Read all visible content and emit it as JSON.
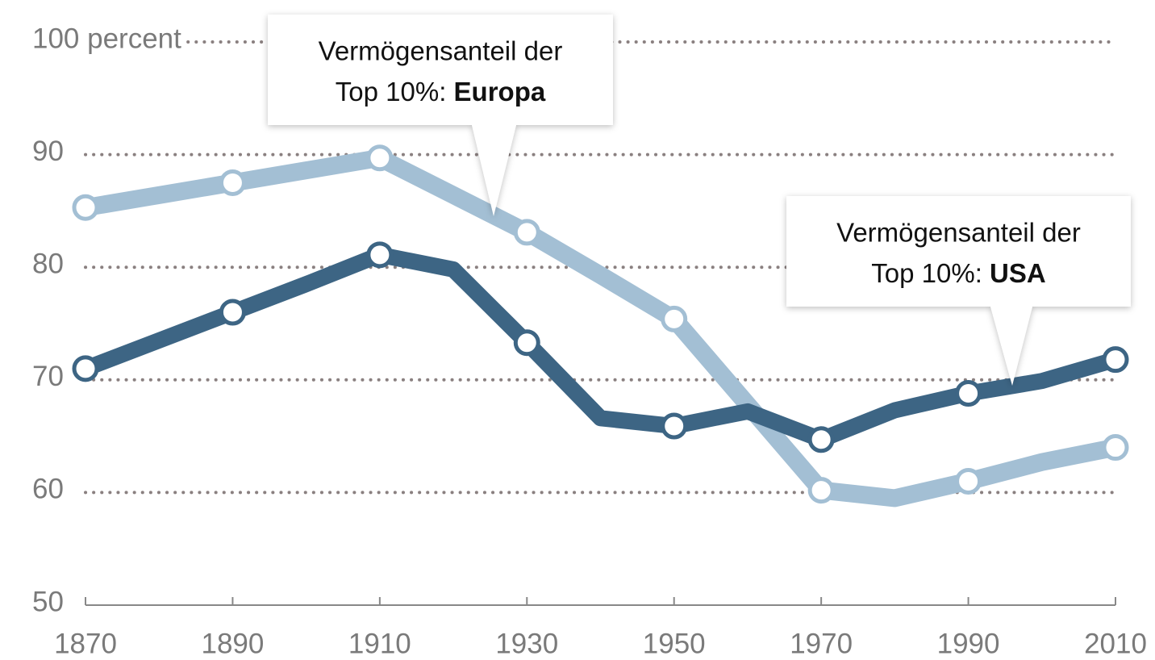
{
  "chart_data": {
    "type": "line",
    "x": [
      1870,
      1880,
      1890,
      1900,
      1910,
      1920,
      1930,
      1940,
      1950,
      1960,
      1970,
      1980,
      1990,
      2000,
      2010
    ],
    "series": [
      {
        "name": "Europa",
        "color": "#a3bfd4",
        "values": [
          85.3,
          86.4,
          87.5,
          88.6,
          89.7,
          86.4,
          83.1,
          79.3,
          75.4,
          67.8,
          60.2,
          59.5,
          61.0,
          62.7,
          64.0
        ]
      },
      {
        "name": "USA",
        "color": "#3d6584",
        "values": [
          71.0,
          73.5,
          76.0,
          78.5,
          81.1,
          79.8,
          73.3,
          66.6,
          65.9,
          67.2,
          64.7,
          67.3,
          68.8,
          69.9,
          71.8
        ]
      }
    ],
    "xlim": [
      1870,
      2010
    ],
    "xticks": [
      1870,
      1890,
      1910,
      1930,
      1950,
      1970,
      1990,
      2010
    ],
    "ylim": [
      50,
      100
    ],
    "yticks": [
      50,
      60,
      70,
      80,
      90,
      {
        "value": 100,
        "label": "100 percent"
      }
    ],
    "grid": true,
    "annotations": [
      {
        "text": "Vermögensanteil der",
        "prefix": "Top 10%:",
        "series": 0
      },
      {
        "text": "Vermögensanteil der",
        "prefix": "Top 10%:",
        "series": 1
      }
    ]
  }
}
